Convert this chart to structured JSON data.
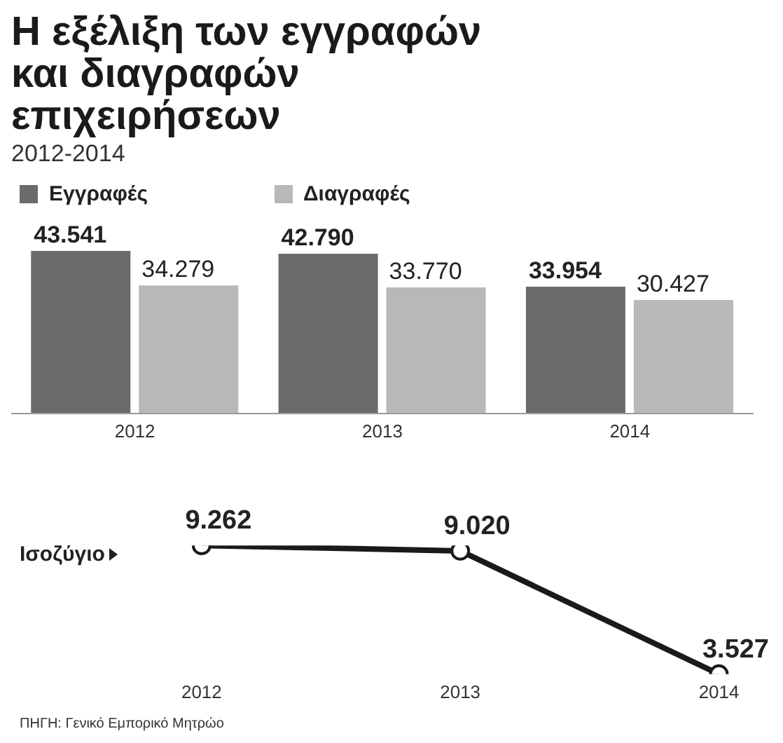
{
  "chart_data": [
    {
      "type": "bar",
      "title": "Η εξέλιξη των εγγραφών και διαγραφών επιχειρήσεων",
      "subtitle": "2012-2014",
      "categories": [
        "2012",
        "2013",
        "2014"
      ],
      "legend": "top left",
      "series": [
        {
          "name": "Εγγραφές",
          "color": "#6b6b6b",
          "values": [
            43541,
            42790,
            33954
          ],
          "value_labels": [
            "43.541",
            "42.790",
            "33.954"
          ]
        },
        {
          "name": "Διαγραφές",
          "color": "#b8b8b8",
          "values": [
            34279,
            33770,
            30427
          ],
          "value_labels": [
            "34.279",
            "33.770",
            "30.427"
          ]
        }
      ]
    },
    {
      "type": "line",
      "categories": [
        "2012",
        "2013",
        "2014"
      ],
      "marker": "circle",
      "line_style": "solid",
      "annotations": [
        "ΠΗΓΗ: Γενικό Εμπορικό Μητρώο"
      ],
      "series": [
        {
          "name": "Ισοζύγιο",
          "color": "#1a1a1a",
          "values": [
            9262,
            9020,
            3527
          ],
          "value_labels": [
            "9.262",
            "9.020",
            "3.527"
          ]
        }
      ]
    }
  ]
}
